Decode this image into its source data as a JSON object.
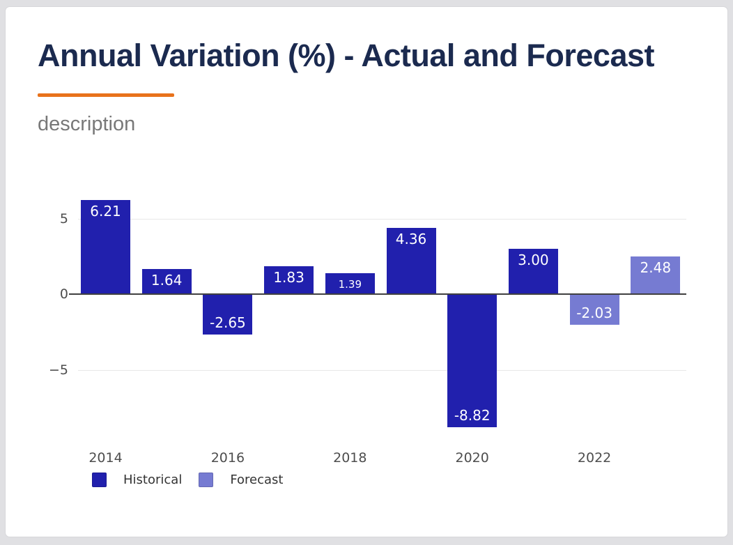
{
  "header": {
    "title": "Annual Variation (%) - Actual and Forecast",
    "description": "description"
  },
  "colors": {
    "title": "#1b2a4f",
    "accent_rule": "#e8721b",
    "historical": "#2120ad",
    "forecast": "#767bd2",
    "axis_line": "#404040",
    "gridline": "#e7e7e7",
    "tick_label": "#4d4d4d",
    "legend_text": "#333333",
    "bar_label": "#ffffff",
    "card_background": "#ffffff",
    "frame_background": "#e0e0e3"
  },
  "chart_data": {
    "type": "bar",
    "title": "Annual Variation (%) - Actual and Forecast",
    "categories": [
      2014,
      2015,
      2016,
      2017,
      2018,
      2019,
      2020,
      2021,
      2022,
      2023
    ],
    "series": [
      {
        "name": "Historical",
        "color": "#2120ad",
        "values": [
          6.21,
          1.64,
          -2.65,
          1.83,
          1.39,
          4.36,
          -8.82,
          3.0,
          null,
          null
        ]
      },
      {
        "name": "Forecast",
        "color": "#767bd2",
        "values": [
          null,
          null,
          null,
          null,
          null,
          null,
          null,
          null,
          -2.03,
          2.48
        ]
      }
    ],
    "bar_labels": [
      "6.21",
      "1.64",
      "-2.65",
      "1.83",
      "1.39",
      "4.36",
      "-8.82",
      "3.00",
      "-2.03",
      "2.48"
    ],
    "y_ticks": [
      {
        "value": 5,
        "label": "5"
      },
      {
        "value": 0,
        "label": "0"
      },
      {
        "value": -5,
        "label": "−5"
      }
    ],
    "x_tick_labels": [
      "2014",
      "2016",
      "2018",
      "2020",
      "2022"
    ],
    "ylim": [
      -9.8,
      6.8
    ],
    "xlabel": "",
    "ylabel": "",
    "grid": "horizontal",
    "legend": [
      {
        "label": "Historical",
        "color": "#2120ad"
      },
      {
        "label": "Forecast",
        "color": "#767bd2"
      }
    ],
    "legend_position": "bottom-left"
  }
}
